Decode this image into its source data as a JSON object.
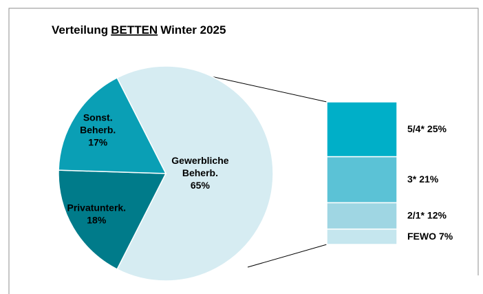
{
  "chart_data": {
    "type": "pie_of_bar",
    "title": {
      "parts": [
        "Verteilung",
        "BETTEN",
        "Winter 2025"
      ],
      "underlined": 1
    },
    "pie": {
      "categories": [
        [
          "Gewerbliche",
          "Beherb."
        ],
        [
          "Privatunterk."
        ],
        [
          "Sonst.",
          "Beherb."
        ]
      ],
      "values": [
        65,
        18,
        17
      ],
      "value_labels": [
        "65%",
        "18%",
        "17%"
      ],
      "colors": [
        "#d6ecf2",
        "#007b8a",
        "#0a9fb5"
      ],
      "start_angle": -27
    },
    "bar": {
      "categories": [
        "5/4*",
        "3*",
        "2/1*",
        "FEWO"
      ],
      "values": [
        25,
        21,
        12,
        7
      ],
      "value_labels": [
        "25%",
        "21%",
        "12%",
        "7%"
      ],
      "colors": [
        "#00afc8",
        "#5bc2d6",
        "#9fd6e3",
        "#c5e6ee"
      ]
    }
  }
}
